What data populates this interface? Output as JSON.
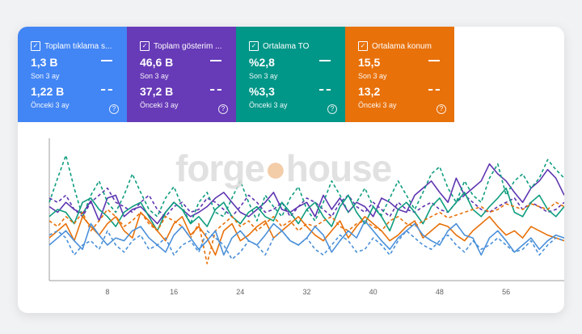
{
  "metrics": [
    {
      "label": "Toplam tıklama s...",
      "current": "1,3 B",
      "current_period": "Son 3 ay",
      "previous": "1,22 B",
      "previous_period": "Önceki 3 ay",
      "color": "#4285f4",
      "help": "?"
    },
    {
      "label": "Toplam gösterim ...",
      "current": "46,6 B",
      "current_period": "Son 3 ay",
      "previous": "37,2 B",
      "previous_period": "Önceki 3 ay",
      "color": "#673ab7",
      "help": "?"
    },
    {
      "label": "Ortalama TO",
      "current": "%2,8",
      "current_period": "Son 3 ay",
      "previous": "%3,3",
      "previous_period": "Önceki 3 ay",
      "color": "#009688",
      "help": "?"
    },
    {
      "label": "Ortalama konum",
      "current": "15,5",
      "current_period": "Son 3 ay",
      "previous": "13,2",
      "previous_period": "Önceki 3 ay",
      "color": "#e8710a",
      "help": "?"
    }
  ],
  "watermark": {
    "left": "forge",
    "right": "house"
  },
  "chart_data": {
    "type": "line",
    "x_ticks": [
      "8",
      "16",
      "24",
      "32",
      "40",
      "48",
      "56"
    ],
    "xlim": [
      1,
      63
    ],
    "ylim": [
      0,
      100
    ],
    "series": [
      {
        "color": "#5e35b1",
        "style": "solid",
        "values": [
          52,
          48,
          55,
          50,
          47,
          56,
          42,
          58,
          60,
          45,
          50,
          52,
          46,
          40,
          48,
          55,
          50,
          45,
          48,
          52,
          58,
          62,
          55,
          48,
          45,
          50,
          55,
          62,
          50,
          48,
          52,
          55,
          45,
          60,
          50,
          58,
          48,
          55,
          52,
          45,
          58,
          55,
          50,
          48,
          60,
          65,
          70,
          62,
          55,
          72,
          60,
          65,
          70,
          82,
          75,
          70,
          62,
          55,
          65,
          70,
          78,
          72,
          60
        ]
      },
      {
        "color": "#5e35b1",
        "style": "dashed",
        "values": [
          58,
          55,
          60,
          50,
          45,
          55,
          60,
          65,
          55,
          52,
          48,
          55,
          60,
          50,
          45,
          52,
          55,
          48,
          50,
          58,
          55,
          50,
          45,
          52,
          60,
          55,
          48,
          50,
          55,
          45,
          52,
          58,
          55,
          50,
          45,
          55,
          60,
          52,
          48,
          55,
          50,
          45,
          55,
          50,
          48,
          52,
          55,
          50,
          48,
          55,
          60,
          55,
          50,
          48,
          52,
          55,
          58,
          50,
          55,
          52,
          48,
          50,
          55
        ]
      },
      {
        "color": "#0f9d7f",
        "style": "solid",
        "values": [
          45,
          50,
          48,
          40,
          55,
          58,
          50,
          45,
          38,
          48,
          52,
          55,
          45,
          35,
          48,
          55,
          50,
          40,
          45,
          38,
          50,
          55,
          45,
          40,
          48,
          52,
          45,
          42,
          55,
          48,
          40,
          50,
          55,
          45,
          38,
          52,
          60,
          48,
          40,
          52,
          45,
          35,
          50,
          55,
          48,
          40,
          52,
          58,
          48,
          55,
          62,
          50,
          45,
          52,
          58,
          65,
          48,
          45,
          55,
          60,
          50,
          45,
          52
        ]
      },
      {
        "color": "#0f9d7f",
        "style": "dashed",
        "values": [
          55,
          72,
          88,
          65,
          45,
          60,
          70,
          55,
          48,
          60,
          75,
          62,
          50,
          45,
          58,
          66,
          52,
          40,
          55,
          62,
          48,
          45,
          58,
          70,
          55,
          42,
          60,
          52,
          45,
          58,
          66,
          50,
          42,
          55,
          70,
          60,
          48,
          55,
          65,
          52,
          46,
          58,
          70,
          60,
          50,
          62,
          75,
          80,
          65,
          55,
          70,
          60,
          55,
          72,
          82,
          60,
          70,
          75,
          65,
          72,
          85,
          78,
          72
        ]
      },
      {
        "color": "#e8710a",
        "style": "solid",
        "values": [
          30,
          35,
          40,
          28,
          45,
          38,
          32,
          40,
          45,
          35,
          30,
          48,
          42,
          35,
          28,
          40,
          45,
          32,
          38,
          30,
          18,
          35,
          40,
          28,
          32,
          38,
          42,
          30,
          35,
          40,
          45,
          38,
          32,
          28,
          35,
          42,
          30,
          38,
          45,
          40,
          35,
          28,
          32,
          38,
          42,
          30,
          35,
          40,
          38,
          32,
          28,
          35,
          40,
          45,
          38,
          32,
          35,
          30,
          38,
          35,
          32,
          30,
          28
        ]
      },
      {
        "color": "#e8710a",
        "style": "dashed",
        "values": [
          42,
          38,
          45,
          40,
          48,
          35,
          42,
          50,
          45,
          38,
          42,
          48,
          40,
          35,
          45,
          42,
          38,
          30,
          40,
          12,
          35,
          40,
          45,
          38,
          42,
          35,
          40,
          45,
          38,
          42,
          35,
          40,
          38,
          42,
          45,
          38,
          35,
          40,
          42,
          38,
          35,
          42,
          45,
          40,
          38,
          42,
          45,
          48,
          44,
          46,
          48,
          50,
          52,
          48,
          50,
          54,
          52,
          50,
          54,
          52,
          50,
          55,
          52
        ]
      },
      {
        "color": "#4a90d9",
        "style": "solid",
        "values": [
          25,
          30,
          35,
          28,
          22,
          40,
          32,
          25,
          30,
          28,
          35,
          38,
          30,
          25,
          20,
          32,
          38,
          30,
          22,
          28,
          35,
          18,
          30,
          35,
          28,
          25,
          32,
          40,
          35,
          28,
          25,
          30,
          38,
          32,
          20,
          28,
          35,
          30,
          42,
          35,
          28,
          22,
          30,
          35,
          40,
          32,
          28,
          25,
          35,
          40,
          32,
          30,
          18,
          30,
          35,
          28,
          20,
          25,
          30,
          22,
          28,
          32,
          30
        ]
      },
      {
        "color": "#4a90d9",
        "style": "dashed",
        "values": [
          32,
          35,
          30,
          18,
          25,
          28,
          22,
          35,
          25,
          20,
          28,
          32,
          22,
          25,
          30,
          18,
          25,
          28,
          20,
          35,
          30,
          25,
          15,
          20,
          28,
          25,
          18,
          30,
          35,
          28,
          25,
          30,
          22,
          18,
          25,
          32,
          28,
          20,
          22,
          30,
          25,
          18,
          28,
          35,
          30,
          25,
          22,
          28,
          32,
          25,
          20,
          28,
          22,
          25,
          30,
          25,
          20,
          22,
          28,
          18,
          25,
          30,
          28
        ]
      }
    ]
  }
}
